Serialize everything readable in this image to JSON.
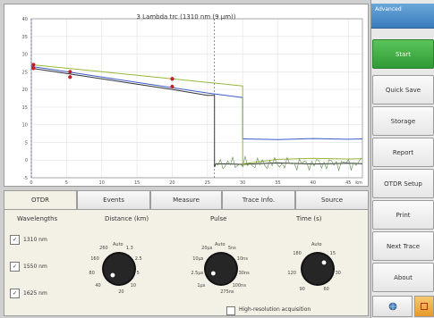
{
  "chart": {
    "title": "3 Lambda trc (1310 nm (9 µm))",
    "y_ticks": [
      "40",
      "35",
      "30",
      "25",
      "20",
      "15",
      "10",
      "5",
      "0",
      "-5"
    ],
    "x_ticks": [
      "0",
      "5",
      "10",
      "15",
      "20",
      "25",
      "30",
      "35",
      "40",
      "45"
    ],
    "x_unit": "km"
  },
  "chart_data": {
    "type": "line",
    "title": "3 Lambda trc (1310 nm (9 µm))",
    "xlabel": "km",
    "ylabel": "",
    "xlim": [
      0,
      47
    ],
    "ylim": [
      -5,
      40
    ],
    "series": [
      {
        "color": "#333333",
        "x": [
          0,
          5,
          10,
          15,
          20,
          25,
          26,
          26,
          26.2,
          30,
          35,
          40,
          45,
          47
        ],
        "y": [
          26,
          24.5,
          23,
          21.5,
          20,
          18.3,
          18.3,
          -2,
          -1,
          -1.2,
          -0.8,
          -1.1,
          -0.9,
          -1
        ]
      },
      {
        "color": "#3b5bc9",
        "x": [
          0,
          5,
          10,
          15,
          20,
          25,
          30,
          30,
          30.2,
          35,
          40,
          45,
          47
        ],
        "y": [
          26.5,
          25,
          23.5,
          22,
          20.5,
          19,
          17.7,
          6,
          6,
          5.8,
          6.1,
          5.9,
          6
        ]
      },
      {
        "color": "#9ab83a",
        "x": [
          0,
          5,
          10,
          15,
          20,
          25,
          30,
          30,
          30.2,
          35,
          40,
          45,
          47
        ],
        "y": [
          27,
          26,
          25,
          24,
          23,
          22,
          21,
          -2,
          -1,
          0.2,
          0.5,
          0.3,
          0.4
        ]
      }
    ]
  },
  "sidebar": {
    "tab_label": "Advanced",
    "buttons": [
      "Start",
      "Quick Save",
      "Storage",
      "Report",
      "OTDR Setup",
      "Print",
      "Next Trace",
      "About"
    ]
  },
  "tabs": [
    "OTDR",
    "Events",
    "Measure",
    "Trace Info.",
    "Source"
  ],
  "otdr": {
    "wavelengths_label": "Wavelengths",
    "wavelengths": [
      {
        "check": "✓",
        "label": "1310 nm"
      },
      {
        "check": "✓",
        "label": "1550 nm"
      },
      {
        "check": "✓",
        "label": "1625 nm"
      }
    ],
    "distance_label": "Distance (km)",
    "distance_marks": [
      "Auto",
      "1.3",
      "2.5",
      "5",
      "10",
      "20",
      "40",
      "80",
      "160",
      "260"
    ],
    "pulse_label": "Pulse",
    "pulse_marks": [
      "Auto",
      "5ns",
      "10ns",
      "30ns",
      "100ns",
      "275ns",
      "1µs",
      "2.5µs",
      "10µs",
      "20µs"
    ],
    "time_label": "Time (s)",
    "time_marks": [
      "Auto",
      "15",
      "30",
      "60",
      "90",
      "120",
      "180"
    ],
    "high_res_label": "High-resolution acquisition"
  }
}
